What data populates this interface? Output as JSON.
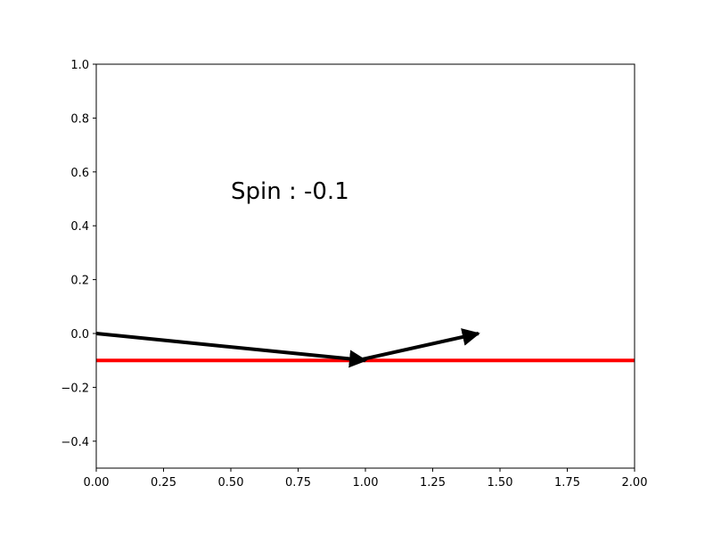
{
  "chart_data": {
    "type": "line",
    "title": "",
    "xlabel": "",
    "ylabel": "",
    "xlim": [
      0,
      2
    ],
    "ylim": [
      -0.5,
      1
    ],
    "x_ticks": [
      0,
      0.25,
      0.5,
      0.75,
      1.0,
      1.25,
      1.5,
      1.75,
      2.0
    ],
    "x_tick_labels": [
      "0.00",
      "0.25",
      "0.50",
      "0.75",
      "1.00",
      "1.25",
      "1.50",
      "1.75",
      "2.00"
    ],
    "y_ticks": [
      -0.4,
      -0.2,
      0.0,
      0.2,
      0.4,
      0.6,
      0.8,
      1.0
    ],
    "y_tick_labels": [
      "−0.4",
      "−0.2",
      "0.0",
      "0.2",
      "0.4",
      "0.6",
      "0.8",
      "1.0"
    ],
    "grid": false,
    "legend": "none",
    "series": [
      {
        "kind": "hline",
        "y": -0.1,
        "x": [
          0,
          2
        ],
        "color": "#ff0000"
      }
    ],
    "arrows": [
      {
        "from": [
          0,
          0
        ],
        "to": [
          1.0,
          -0.1
        ],
        "color": "#000000"
      },
      {
        "from": [
          0.97,
          -0.1
        ],
        "to": [
          1.42,
          0.0
        ],
        "color": "#000000"
      }
    ],
    "annotation": {
      "text": "Spin : -0.1",
      "x": 0.5,
      "y": 0.5
    }
  }
}
